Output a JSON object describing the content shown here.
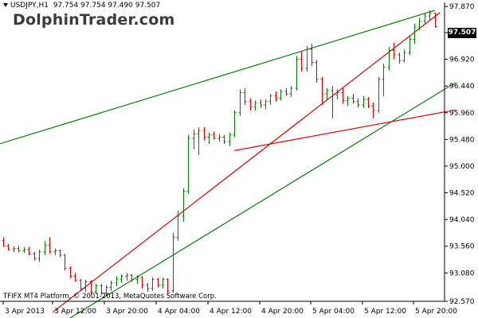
{
  "header": {
    "symbol": "USDJPY,H1",
    "ohlc": "97.754 97.754 97.490 97.507"
  },
  "watermark": "DolphinTrader.com",
  "copyright": "TFIFX MT4 Platform, © 2001-2013, MetaQuotes Software Corp.",
  "current_price": "97.507",
  "colors": {
    "bull": "#008000",
    "bear": "#e00000",
    "axis": "#000000",
    "background": "#ffffff"
  },
  "chart_data": {
    "type": "bar",
    "subtype": "ohlc-bars",
    "ylim": [
      92.57,
      97.9
    ],
    "y_ticks": [
      "97.870",
      "97.400",
      "96.920",
      "96.440",
      "95.960",
      "95.480",
      "95.000",
      "94.520",
      "94.040",
      "93.560",
      "93.080",
      "92.570"
    ],
    "x_ticks": [
      "3 Apr 2013",
      "3 Apr 12:00",
      "3 Apr 20:00",
      "4 Apr 04:00",
      "4 Apr 12:00",
      "4 Apr 20:00",
      "5 Apr 04:00",
      "5 Apr 12:00",
      "5 Apr 20:00"
    ],
    "grid": false,
    "series": [
      {
        "name": "",
        "bars": [
          [
            93.66,
            93.72,
            93.55,
            93.56
          ],
          [
            93.56,
            93.6,
            93.48,
            93.5
          ],
          [
            93.5,
            93.56,
            93.45,
            93.52
          ],
          [
            93.52,
            93.57,
            93.45,
            93.48
          ],
          [
            93.48,
            93.54,
            93.44,
            93.5
          ],
          [
            93.5,
            93.55,
            93.4,
            93.42
          ],
          [
            93.42,
            93.46,
            93.3,
            93.34
          ],
          [
            93.34,
            93.5,
            93.28,
            93.46
          ],
          [
            93.46,
            93.65,
            93.4,
            93.58
          ],
          [
            93.58,
            93.72,
            93.42,
            93.46
          ],
          [
            93.46,
            93.52,
            93.4,
            93.48
          ],
          [
            93.48,
            93.5,
            93.36,
            93.4
          ],
          [
            93.4,
            93.42,
            93.12,
            93.16
          ],
          [
            93.16,
            93.2,
            92.98,
            93.02
          ],
          [
            93.02,
            93.08,
            92.92,
            92.95
          ],
          [
            92.95,
            92.97,
            92.75,
            92.8
          ],
          [
            92.8,
            92.96,
            92.74,
            92.92
          ],
          [
            92.92,
            92.95,
            92.7,
            92.74
          ],
          [
            92.74,
            92.88,
            92.7,
            92.85
          ],
          [
            92.85,
            92.88,
            92.68,
            92.72
          ],
          [
            92.72,
            92.86,
            92.66,
            92.82
          ],
          [
            92.82,
            92.94,
            92.76,
            92.9
          ],
          [
            92.9,
            93.02,
            92.84,
            92.97
          ],
          [
            92.97,
            93.06,
            92.9,
            93.02
          ],
          [
            93.02,
            93.08,
            92.94,
            93.04
          ],
          [
            93.04,
            93.06,
            92.92,
            92.96
          ],
          [
            92.96,
            93.04,
            92.88,
            93.0
          ],
          [
            93.0,
            93.02,
            92.8,
            92.86
          ],
          [
            92.86,
            92.9,
            92.74,
            92.8
          ],
          [
            92.8,
            93.0,
            92.76,
            92.96
          ],
          [
            92.96,
            92.99,
            92.82,
            92.86
          ],
          [
            92.86,
            93.0,
            92.8,
            92.96
          ],
          [
            92.96,
            92.98,
            92.7,
            92.76
          ],
          [
            92.76,
            93.8,
            92.72,
            93.72
          ],
          [
            93.72,
            94.2,
            93.66,
            94.1
          ],
          [
            94.1,
            94.6,
            94.0,
            94.55
          ],
          [
            94.55,
            95.56,
            94.5,
            95.5
          ],
          [
            95.5,
            95.66,
            95.3,
            95.58
          ],
          [
            95.58,
            95.7,
            95.2,
            95.64
          ],
          [
            95.64,
            95.7,
            95.46,
            95.52
          ],
          [
            95.52,
            95.6,
            95.4,
            95.56
          ],
          [
            95.56,
            95.62,
            95.48,
            95.5
          ],
          [
            95.5,
            95.58,
            95.44,
            95.52
          ],
          [
            95.52,
            95.56,
            95.4,
            95.44
          ],
          [
            95.44,
            95.6,
            95.36,
            95.56
          ],
          [
            95.56,
            96.0,
            95.52,
            95.96
          ],
          [
            95.96,
            96.38,
            95.9,
            96.32
          ],
          [
            96.32,
            96.4,
            96.1,
            96.16
          ],
          [
            96.16,
            96.22,
            96.0,
            96.06
          ],
          [
            96.06,
            96.18,
            96.0,
            96.14
          ],
          [
            96.14,
            96.2,
            96.04,
            96.1
          ],
          [
            96.1,
            96.2,
            96.02,
            96.16
          ],
          [
            96.16,
            96.3,
            96.1,
            96.26
          ],
          [
            96.26,
            96.34,
            96.16,
            96.22
          ],
          [
            96.22,
            96.38,
            96.18,
            96.34
          ],
          [
            96.34,
            96.4,
            96.26,
            96.3
          ],
          [
            96.3,
            96.44,
            96.24,
            96.4
          ],
          [
            96.4,
            96.98,
            96.36,
            96.92
          ],
          [
            96.92,
            97.06,
            96.7,
            96.76
          ],
          [
            96.76,
            97.16,
            96.7,
            97.1
          ],
          [
            97.1,
            97.2,
            96.8,
            96.86
          ],
          [
            96.86,
            96.9,
            96.5,
            96.56
          ],
          [
            96.56,
            96.6,
            96.1,
            96.3
          ],
          [
            96.3,
            96.4,
            96.2,
            96.36
          ],
          [
            96.36,
            96.44,
            95.86,
            96.28
          ],
          [
            96.28,
            96.38,
            96.2,
            96.32
          ],
          [
            96.32,
            96.4,
            96.12,
            96.18
          ],
          [
            96.18,
            96.26,
            96.08,
            96.22
          ],
          [
            96.22,
            96.3,
            96.12,
            96.16
          ],
          [
            96.16,
            96.22,
            96.06,
            96.1
          ],
          [
            96.1,
            96.26,
            96.04,
            96.2
          ],
          [
            96.2,
            96.24,
            96.04,
            96.08
          ],
          [
            96.08,
            96.14,
            95.86,
            96.0
          ],
          [
            96.0,
            96.6,
            95.96,
            96.56
          ],
          [
            96.56,
            96.84,
            96.26,
            96.78
          ],
          [
            96.78,
            97.14,
            96.72,
            97.08
          ],
          [
            97.08,
            97.22,
            96.92,
            97.0
          ],
          [
            97.0,
            97.04,
            96.84,
            96.9
          ],
          [
            96.9,
            97.1,
            96.86,
            97.04
          ],
          [
            97.04,
            97.34,
            97.0,
            97.28
          ],
          [
            97.28,
            97.56,
            97.2,
            97.5
          ],
          [
            97.5,
            97.66,
            97.44,
            97.6
          ],
          [
            97.6,
            97.75,
            97.56,
            97.7
          ],
          [
            97.7,
            97.8,
            97.62,
            97.75
          ],
          [
            97.754,
            97.754,
            97.49,
            97.507
          ]
        ]
      }
    ],
    "trendlines": [
      {
        "name": "",
        "color": "#008000",
        "from": [
          0,
          95.42
        ],
        "to": [
          84,
          97.8
        ]
      },
      {
        "name": "",
        "color": "#008000",
        "from": [
          10,
          92.1
        ],
        "to": [
          88,
          96.5
        ]
      },
      {
        "name": "",
        "color": "#e00000",
        "from": [
          10,
          92.4
        ],
        "to": [
          85,
          97.76
        ]
      },
      {
        "name": "",
        "color": "#e00000",
        "from": [
          45,
          95.28
        ],
        "to": [
          88,
          96.01
        ]
      }
    ]
  }
}
